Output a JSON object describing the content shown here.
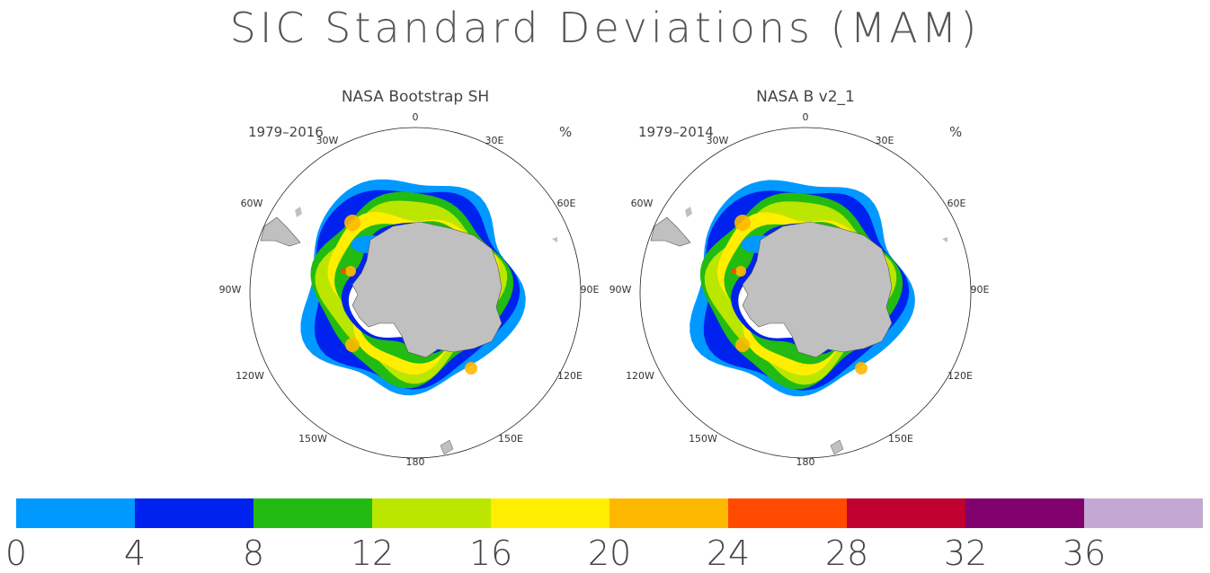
{
  "title": "SIC Standard Deviations (MAM)",
  "panels": [
    {
      "title": "NASA Bootstrap SH",
      "period": "1979–2016",
      "unit": "%",
      "lon_labels": {
        "0": "0",
        "30e": "30E",
        "60e": "60E",
        "90e": "90E",
        "120e": "120E",
        "150e": "150E",
        "180": "180",
        "150w": "150W",
        "120w": "120W",
        "90w": "90W",
        "60w": "60W",
        "30w": "30W"
      }
    },
    {
      "title": "NASA B v2_1",
      "period": "1979–2014",
      "unit": "%",
      "lon_labels": {
        "0": "0",
        "30e": "30E",
        "60e": "60E",
        "90e": "90E",
        "120e": "120E",
        "150e": "150E",
        "180": "180",
        "150w": "150W",
        "120w": "120W",
        "90w": "90W",
        "60w": "60W",
        "30w": "30W"
      }
    }
  ],
  "colorbar": {
    "colors": [
      "#0099ff",
      "#0022ee",
      "#22bb11",
      "#bbe600",
      "#ffee00",
      "#ffb800",
      "#ff4a00",
      "#c0002e",
      "#80006e",
      "#c4a8d4"
    ],
    "ticks": [
      "0",
      "4",
      "8",
      "12",
      "16",
      "20",
      "24",
      "28",
      "32",
      "36"
    ]
  },
  "land_color": "#c0c0c0"
}
